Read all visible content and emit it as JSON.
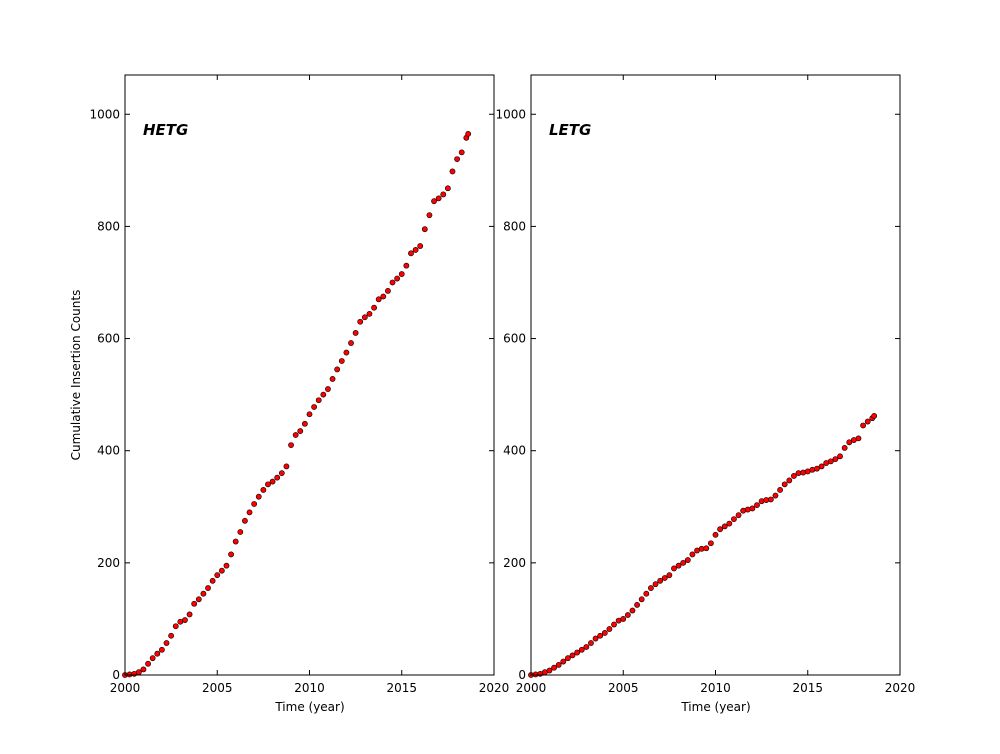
{
  "chart_data": [
    {
      "type": "scatter",
      "title": "HETG",
      "xlabel": "Time (year)",
      "ylabel": "Cumulative Insertion Counts",
      "xlim": [
        2000,
        2020
      ],
      "ylim": [
        0,
        1070
      ],
      "xticks": [
        2000,
        2005,
        2010,
        2015,
        2020
      ],
      "yticks": [
        0,
        200,
        400,
        600,
        800,
        1000
      ],
      "grid": false,
      "marker_color": "#ff0000",
      "marker_edge": "#000000",
      "points": [
        [
          2000,
          0
        ],
        [
          2000.25,
          1
        ],
        [
          2000.5,
          2
        ],
        [
          2000.75,
          5
        ],
        [
          2001,
          10
        ],
        [
          2001.25,
          20
        ],
        [
          2001.5,
          30
        ],
        [
          2001.75,
          38
        ],
        [
          2002,
          45
        ],
        [
          2002.25,
          57
        ],
        [
          2002.5,
          70
        ],
        [
          2002.75,
          87
        ],
        [
          2003,
          95
        ],
        [
          2003.25,
          98
        ],
        [
          2003.5,
          108
        ],
        [
          2003.75,
          127
        ],
        [
          2004,
          135
        ],
        [
          2004.25,
          145
        ],
        [
          2004.5,
          155
        ],
        [
          2004.75,
          168
        ],
        [
          2005,
          178
        ],
        [
          2005.25,
          186
        ],
        [
          2005.5,
          195
        ],
        [
          2005.75,
          215
        ],
        [
          2006,
          238
        ],
        [
          2006.25,
          255
        ],
        [
          2006.5,
          275
        ],
        [
          2006.75,
          290
        ],
        [
          2007,
          305
        ],
        [
          2007.25,
          318
        ],
        [
          2007.5,
          330
        ],
        [
          2007.75,
          340
        ],
        [
          2008,
          345
        ],
        [
          2008.25,
          352
        ],
        [
          2008.5,
          360
        ],
        [
          2008.75,
          372
        ],
        [
          2009,
          410
        ],
        [
          2009.25,
          428
        ],
        [
          2009.5,
          435
        ],
        [
          2009.75,
          448
        ],
        [
          2010,
          465
        ],
        [
          2010.25,
          478
        ],
        [
          2010.5,
          490
        ],
        [
          2010.75,
          500
        ],
        [
          2011,
          510
        ],
        [
          2011.25,
          528
        ],
        [
          2011.5,
          545
        ],
        [
          2011.75,
          560
        ],
        [
          2012,
          575
        ],
        [
          2012.25,
          592
        ],
        [
          2012.5,
          610
        ],
        [
          2012.75,
          630
        ],
        [
          2013,
          638
        ],
        [
          2013.25,
          644
        ],
        [
          2013.5,
          655
        ],
        [
          2013.75,
          670
        ],
        [
          2014,
          675
        ],
        [
          2014.25,
          685
        ],
        [
          2014.5,
          700
        ],
        [
          2014.75,
          707
        ],
        [
          2015,
          715
        ],
        [
          2015.25,
          730
        ],
        [
          2015.5,
          752
        ],
        [
          2015.75,
          758
        ],
        [
          2016,
          765
        ],
        [
          2016.25,
          795
        ],
        [
          2016.5,
          820
        ],
        [
          2016.75,
          845
        ],
        [
          2017,
          850
        ],
        [
          2017.25,
          857
        ],
        [
          2017.5,
          868
        ],
        [
          2017.75,
          898
        ],
        [
          2018,
          920
        ],
        [
          2018.25,
          932
        ],
        [
          2018.5,
          958
        ],
        [
          2018.6,
          965
        ]
      ]
    },
    {
      "type": "scatter",
      "title": "LETG",
      "xlabel": "Time (year)",
      "ylabel": "",
      "xlim": [
        2000,
        2020
      ],
      "ylim": [
        0,
        1070
      ],
      "xticks": [
        2000,
        2005,
        2010,
        2015,
        2020
      ],
      "yticks": [
        0,
        200,
        400,
        600,
        800,
        1000
      ],
      "grid": false,
      "marker_color": "#ff0000",
      "marker_edge": "#000000",
      "points": [
        [
          2000,
          0
        ],
        [
          2000.25,
          1
        ],
        [
          2000.5,
          2
        ],
        [
          2000.75,
          5
        ],
        [
          2001,
          8
        ],
        [
          2001.25,
          13
        ],
        [
          2001.5,
          18
        ],
        [
          2001.75,
          24
        ],
        [
          2002,
          30
        ],
        [
          2002.25,
          35
        ],
        [
          2002.5,
          40
        ],
        [
          2002.75,
          45
        ],
        [
          2003,
          50
        ],
        [
          2003.25,
          57
        ],
        [
          2003.5,
          65
        ],
        [
          2003.75,
          70
        ],
        [
          2004,
          75
        ],
        [
          2004.25,
          82
        ],
        [
          2004.5,
          90
        ],
        [
          2004.75,
          97
        ],
        [
          2005,
          100
        ],
        [
          2005.25,
          107
        ],
        [
          2005.5,
          115
        ],
        [
          2005.75,
          125
        ],
        [
          2006,
          135
        ],
        [
          2006.25,
          145
        ],
        [
          2006.5,
          155
        ],
        [
          2006.75,
          162
        ],
        [
          2007,
          168
        ],
        [
          2007.25,
          173
        ],
        [
          2007.5,
          178
        ],
        [
          2007.75,
          190
        ],
        [
          2008,
          195
        ],
        [
          2008.25,
          200
        ],
        [
          2008.5,
          205
        ],
        [
          2008.75,
          215
        ],
        [
          2009,
          222
        ],
        [
          2009.25,
          225
        ],
        [
          2009.5,
          226
        ],
        [
          2009.75,
          235
        ],
        [
          2010,
          250
        ],
        [
          2010.25,
          260
        ],
        [
          2010.5,
          265
        ],
        [
          2010.75,
          270
        ],
        [
          2011,
          278
        ],
        [
          2011.25,
          285
        ],
        [
          2011.5,
          293
        ],
        [
          2011.75,
          295
        ],
        [
          2012,
          297
        ],
        [
          2012.25,
          303
        ],
        [
          2012.5,
          310
        ],
        [
          2012.75,
          312
        ],
        [
          2013,
          313
        ],
        [
          2013.25,
          320
        ],
        [
          2013.5,
          330
        ],
        [
          2013.75,
          340
        ],
        [
          2014,
          347
        ],
        [
          2014.25,
          355
        ],
        [
          2014.5,
          360
        ],
        [
          2014.75,
          361
        ],
        [
          2015,
          363
        ],
        [
          2015.25,
          366
        ],
        [
          2015.5,
          368
        ],
        [
          2015.75,
          372
        ],
        [
          2016,
          378
        ],
        [
          2016.25,
          381
        ],
        [
          2016.5,
          385
        ],
        [
          2016.75,
          390
        ],
        [
          2017,
          405
        ],
        [
          2017.25,
          415
        ],
        [
          2017.5,
          419
        ],
        [
          2017.75,
          422
        ],
        [
          2018,
          445
        ],
        [
          2018.25,
          452
        ],
        [
          2018.5,
          458
        ],
        [
          2018.6,
          462
        ]
      ]
    }
  ]
}
